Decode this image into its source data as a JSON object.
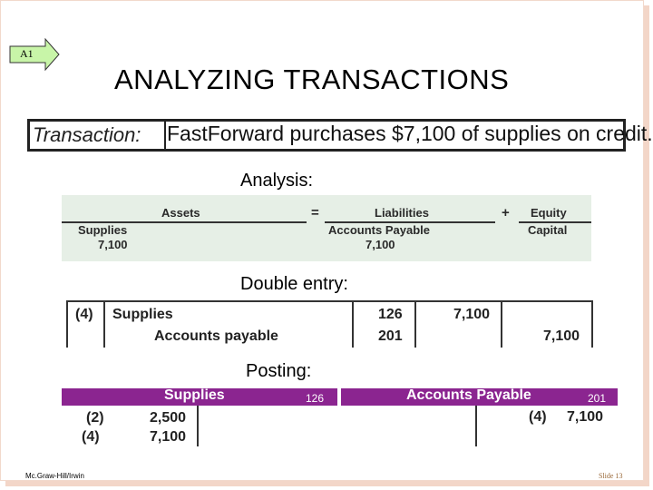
{
  "badge": {
    "label": "A1"
  },
  "title": "ANALYZING TRANSACTIONS",
  "transaction": {
    "label": "Transaction:",
    "text": "FastForward purchases $7,100 of supplies on credit."
  },
  "analysis": {
    "heading": "Analysis:",
    "assets": "Assets",
    "equals": "=",
    "liabilities": "Liabilities",
    "plus": "+",
    "equity": "Equity",
    "supplies": "Supplies",
    "supplies_amount": "7,100",
    "accounts_payable": "Accounts Payable",
    "ap_amount": "7,100",
    "capital": "Capital"
  },
  "double_entry": {
    "heading": "Double entry:",
    "ref": "(4)",
    "debit_account": "Supplies",
    "credit_account": "Accounts payable",
    "debit_no": "126",
    "credit_no": "201",
    "debit_amount": "7,100",
    "credit_amount": "7,100"
  },
  "posting": {
    "heading": "Posting:",
    "supplies_ledger": {
      "title": "Supplies",
      "number": "126",
      "rows": [
        {
          "ref": "(2)",
          "amount": "2,500"
        },
        {
          "ref": "(4)",
          "amount": "7,100"
        }
      ]
    },
    "ap_ledger": {
      "title": "Accounts Payable",
      "number": "201",
      "rows": [
        {
          "ref": "(4)",
          "amount": "7,100"
        }
      ]
    }
  },
  "footer": {
    "publisher": "Mc.Graw-Hill/Irwin",
    "slide": "Slide 13"
  },
  "colors": {
    "ledger_header": "#8b2590",
    "equation_bg": "#e6efe6",
    "badge_fill": "#c8f5a8"
  }
}
